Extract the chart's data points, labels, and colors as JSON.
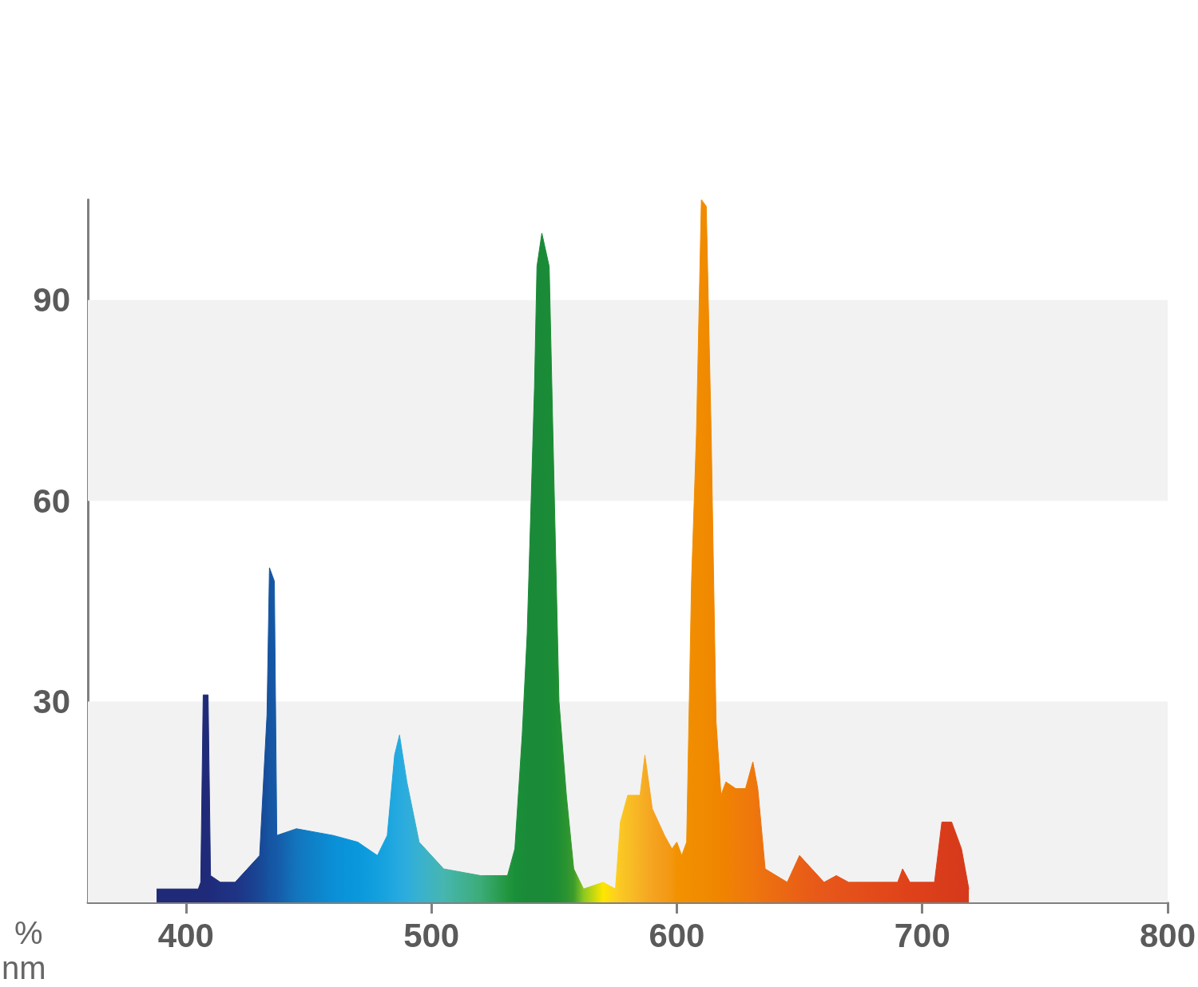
{
  "chart_data": {
    "type": "area",
    "xlabel": "nm",
    "ylabel": "%",
    "xlim": [
      360,
      800
    ],
    "xticks": [
      400,
      500,
      600,
      700,
      800
    ],
    "ylim": [
      0,
      105
    ],
    "yticks": [
      30,
      60,
      90
    ],
    "grid": false,
    "marker": "none",
    "bands": [
      {
        "axis": "y",
        "from": 0,
        "to": 30,
        "color": "#f2f2f2"
      },
      {
        "axis": "y",
        "from": 60,
        "to": 90,
        "color": "#f2f2f2"
      }
    ],
    "series": [
      {
        "x": [
          388,
          405,
          406,
          407,
          409,
          410,
          414,
          420,
          425,
          430,
          433,
          434,
          436,
          437,
          445,
          460,
          470,
          478,
          482,
          485,
          487,
          490,
          495,
          505,
          520,
          531,
          534,
          537,
          539,
          542,
          543,
          545,
          548,
          550,
          552,
          555,
          558,
          562,
          570,
          575,
          577,
          580,
          585,
          587,
          590,
          595,
          598,
          600,
          602,
          604,
          606,
          608,
          610,
          612,
          614,
          616,
          618,
          620,
          624,
          628,
          631,
          633,
          636,
          645,
          650,
          655,
          660,
          665,
          670,
          690,
          692,
          695,
          705,
          708,
          712,
          716,
          719
        ],
        "values": [
          2,
          2,
          3,
          31,
          31,
          4,
          3,
          3,
          5,
          7,
          28,
          50,
          48,
          10,
          11,
          10,
          9,
          7,
          10,
          22,
          25,
          18,
          9,
          5,
          4,
          4,
          8,
          25,
          40,
          77,
          95,
          100,
          95,
          62,
          30,
          16,
          5,
          2,
          3,
          2,
          12,
          16,
          16,
          22,
          14,
          10,
          8,
          9,
          7,
          9,
          48,
          70,
          105,
          104,
          70,
          27,
          16,
          18,
          17,
          17,
          21,
          17,
          5,
          3,
          7,
          5,
          3,
          4,
          3,
          3,
          5,
          3,
          3,
          12,
          12,
          8,
          2
        ],
        "colors": [
          "#1f2a78",
          "#1f2a78",
          "#1f2a78",
          "#1f2a78",
          "#1f2a78",
          "#1f2b7c",
          "#1f2f80",
          "#1f3384",
          "#1c3c8c",
          "#184896",
          "#16509e",
          "#1555a2",
          "#1558a5",
          "#155aa8",
          "#1275bd",
          "#0a8fd6",
          "#0a98dc",
          "#12a0de",
          "#1aa4df",
          "#22a8df",
          "#27aadf",
          "#2eaddc",
          "#38b1cf",
          "#46b6b0",
          "#3cac78",
          "#22963e",
          "#1a8f3a",
          "#1a8c38",
          "#1a8a38",
          "#1a8a38",
          "#1a8a38",
          "#1a8a38",
          "#1a8b36",
          "#1c8c34",
          "#208e32",
          "#2a9430",
          "#3c9c2c",
          "#8cc820",
          "#ffe600",
          "#fcd020",
          "#fbc823",
          "#f9bf25",
          "#f7b224",
          "#f6ab23",
          "#f5a420",
          "#f49b18",
          "#f39710",
          "#f39200",
          "#f29000",
          "#f28f00",
          "#f18d00",
          "#f18c00",
          "#f18b00",
          "#f08a00",
          "#f08800",
          "#f08600",
          "#f08400",
          "#f08200",
          "#ef7e08",
          "#ef7a0a",
          "#ef770c",
          "#ee740e",
          "#ed7010",
          "#eb6614",
          "#ea6016",
          "#e85b18",
          "#e7571a",
          "#e6541a",
          "#e5511a",
          "#e1451a",
          "#e0431a",
          "#df421a",
          "#db3e1a",
          "#d93c1a",
          "#d83b1a",
          "#d73a1a",
          "#d63a1a"
        ]
      }
    ]
  }
}
